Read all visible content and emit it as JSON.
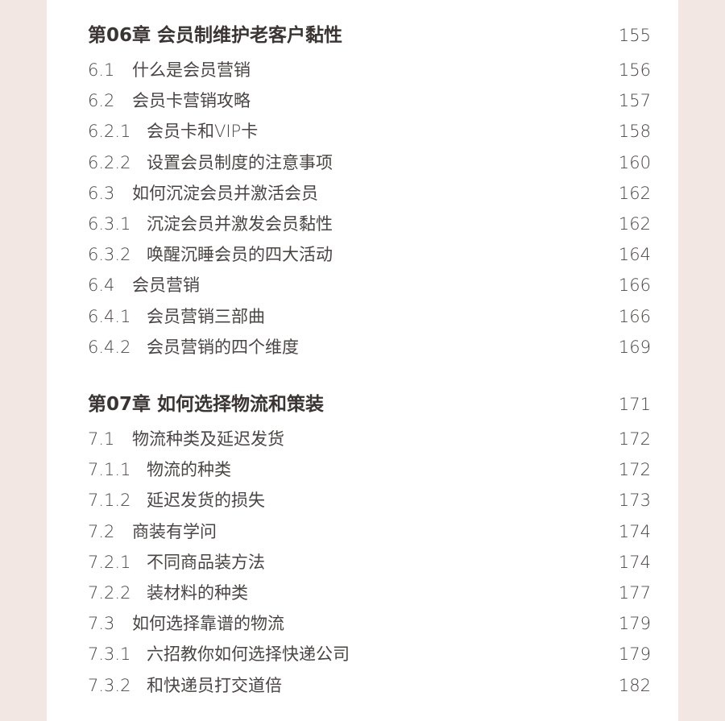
{
  "chapters": [
    {
      "heading": "第06章  会员制维护老客户黏性",
      "page": "155",
      "entries": [
        {
          "num": "6.1",
          "title": "什么是会员营销",
          "page": "156",
          "level": 2
        },
        {
          "num": "6.2",
          "title": "会员卡营销攻略",
          "page": "157",
          "level": 2
        },
        {
          "num": "6.2.1",
          "title": "会员卡和VIP卡",
          "page": "158",
          "level": 3
        },
        {
          "num": "6.2.2",
          "title": "设置会员制度的注意事项",
          "page": "160",
          "level": 3
        },
        {
          "num": "6.3",
          "title": "如何沉淀会员并激活会员",
          "page": "162",
          "level": 2
        },
        {
          "num": "6.3.1",
          "title": "沉淀会员并激发会员黏性",
          "page": "162",
          "level": 3
        },
        {
          "num": "6.3.2",
          "title": "唤醒沉睡会员的四大活动",
          "page": "164",
          "level": 3
        },
        {
          "num": "6.4",
          "title": "会员营销",
          "page": "166",
          "level": 2
        },
        {
          "num": "6.4.1",
          "title": "会员营销三部曲",
          "page": "166",
          "level": 3
        },
        {
          "num": "6.4.2",
          "title": "会员营销的四个维度",
          "page": "169",
          "level": 3
        }
      ]
    },
    {
      "heading": "第07章  如何选择物流和策装",
      "page": "171",
      "entries": [
        {
          "num": "7.1",
          "title": "物流种类及延迟发货",
          "page": "172",
          "level": 2
        },
        {
          "num": "7.1.1",
          "title": "物流的种类",
          "page": "172",
          "level": 3
        },
        {
          "num": "7.1.2",
          "title": "延迟发货的损失",
          "page": "173",
          "level": 3
        },
        {
          "num": "7.2",
          "title": "商装有学问",
          "page": "174",
          "level": 2
        },
        {
          "num": "7.2.1",
          "title": "不同商品装方法",
          "page": "174",
          "level": 3
        },
        {
          "num": "7.2.2",
          "title": "装材料的种类",
          "page": "177",
          "level": 3
        },
        {
          "num": "7.3",
          "title": "如何选择靠谱的物流",
          "page": "179",
          "level": 2
        },
        {
          "num": "7.3.1",
          "title": "六招教你如何选择快递公司",
          "page": "179",
          "level": 3
        },
        {
          "num": "7.3.2",
          "title": "和快递员打交道倍",
          "page": "182",
          "level": 3
        }
      ]
    }
  ]
}
